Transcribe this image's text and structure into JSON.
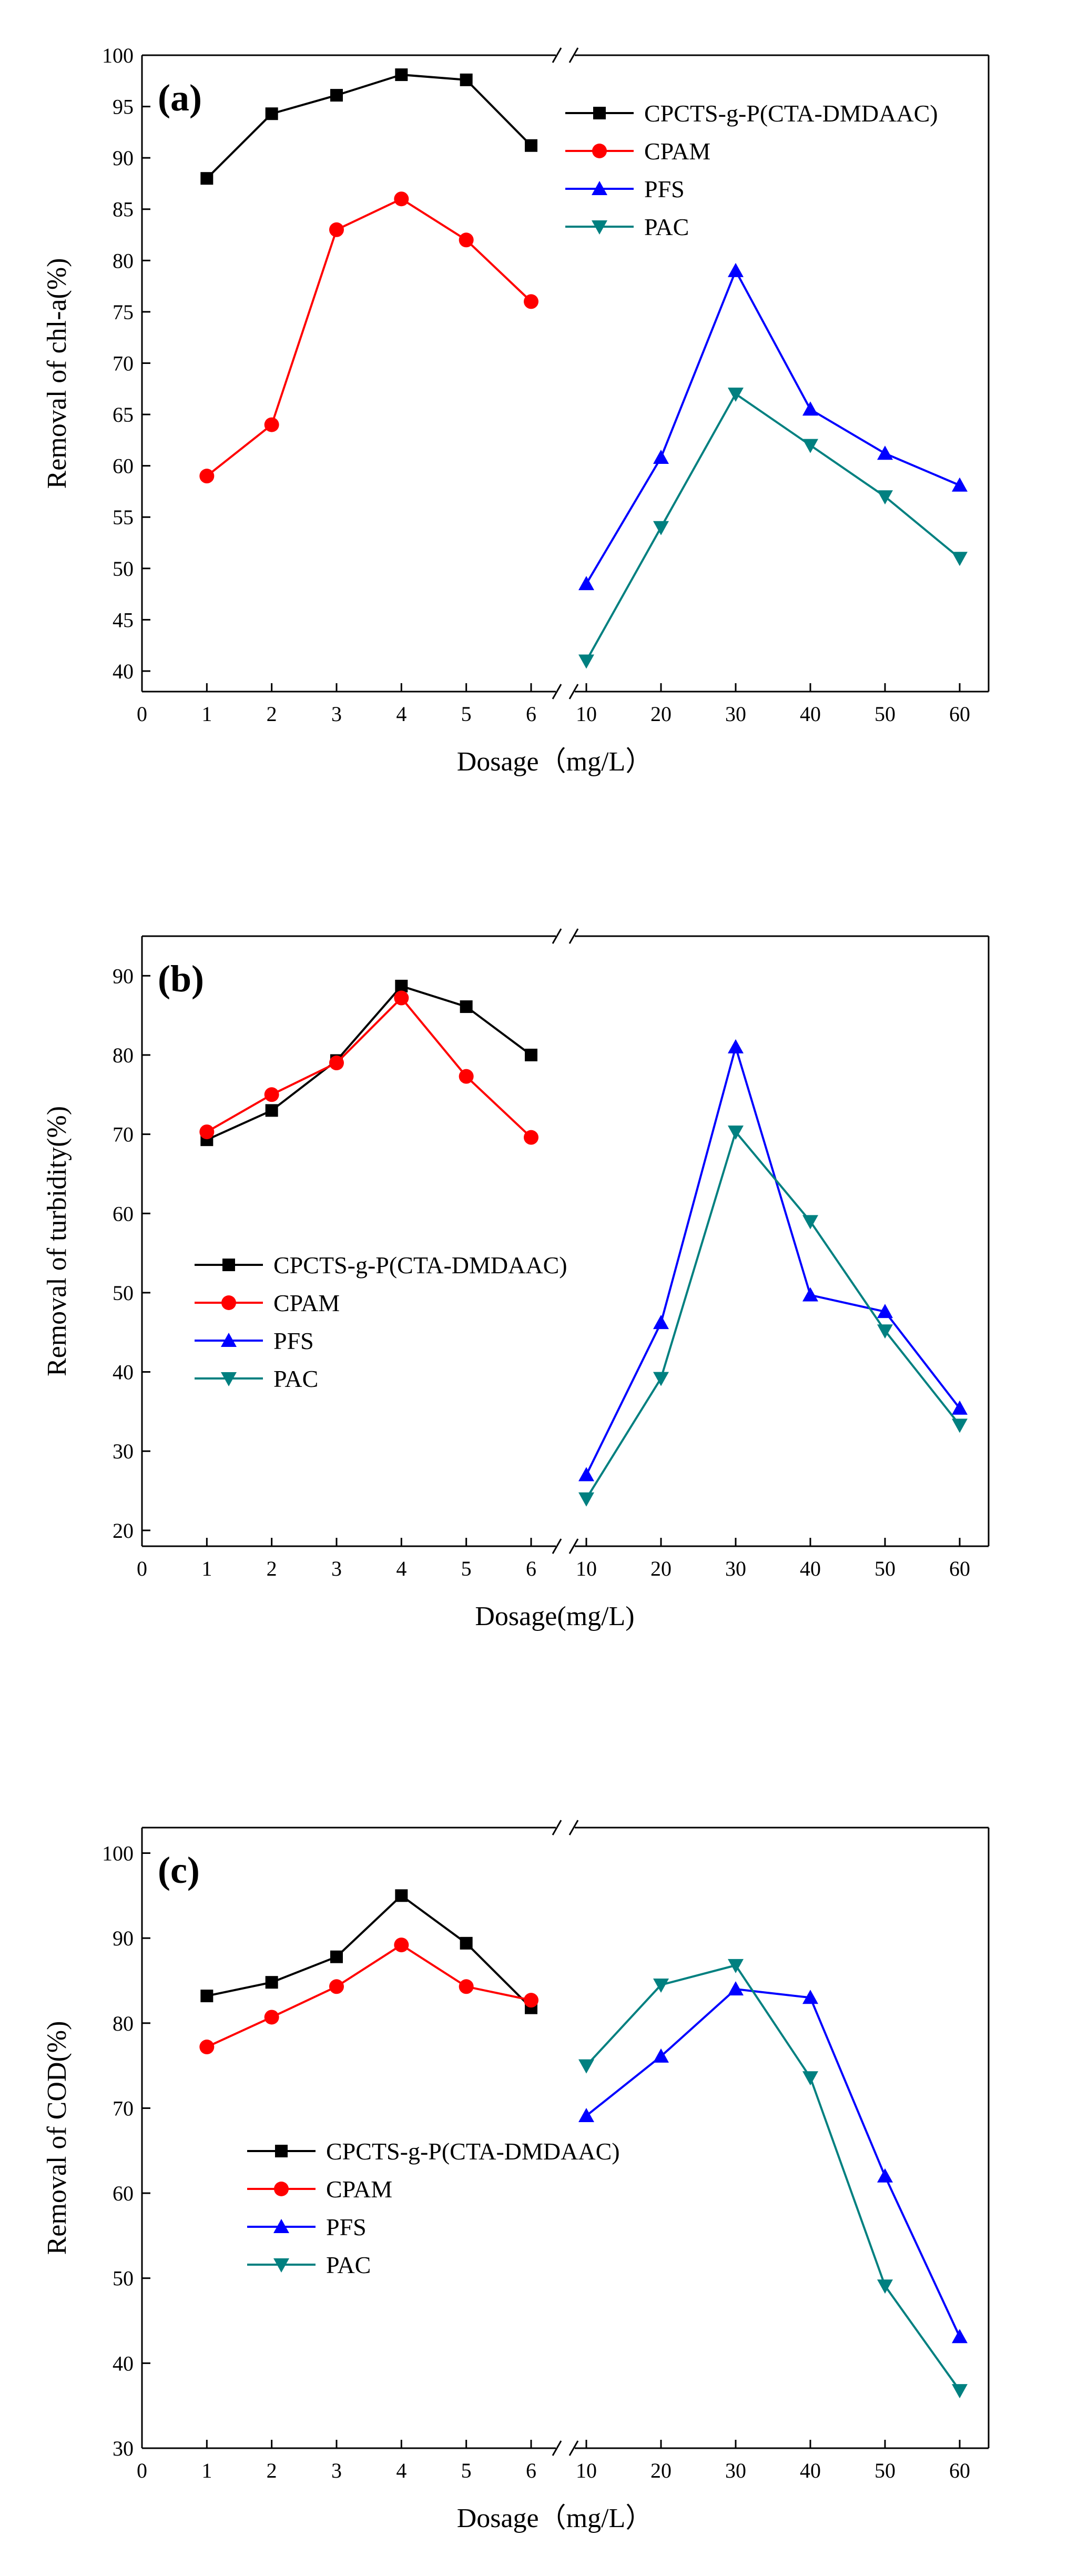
{
  "colors": {
    "black": "#000000",
    "red": "#ff0000",
    "blue": "#0000ff",
    "teal": "#008080"
  },
  "chart_data": [
    {
      "type": "line",
      "panel_label": "(a)",
      "xlabel": "Dosage（mg/L）",
      "ylabel": "Removal of chl-a(%)",
      "ylim": [
        38,
        100
      ],
      "yticks": [
        40,
        45,
        50,
        55,
        60,
        65,
        70,
        75,
        80,
        85,
        90,
        95,
        100
      ],
      "xticks_left": [
        0,
        1,
        2,
        3,
        4,
        5,
        6
      ],
      "xticks_right": [
        10,
        20,
        30,
        40,
        50,
        60
      ],
      "legend_position": "top-right",
      "series": [
        {
          "name": "CPCTS-g-P(CTA-DMDAAC)",
          "color": "#000000",
          "marker": "square",
          "x": [
            1,
            2,
            3,
            4,
            5,
            6
          ],
          "values": [
            88,
            94.3,
            96.1,
            98.1,
            97.6,
            91.2
          ]
        },
        {
          "name": "CPAM",
          "color": "#ff0000",
          "marker": "circle",
          "x": [
            1,
            2,
            3,
            4,
            5,
            6
          ],
          "values": [
            59,
            64,
            83,
            86,
            82,
            76
          ]
        },
        {
          "name": "PFS",
          "color": "#0000ff",
          "marker": "triangle-up",
          "x": [
            10,
            20,
            30,
            40,
            50,
            60
          ],
          "values": [
            48.5,
            60.8,
            79,
            65.5,
            61.2,
            58.1
          ]
        },
        {
          "name": "PAC",
          "color": "#008080",
          "marker": "triangle-down",
          "x": [
            10,
            20,
            30,
            40,
            50,
            60
          ],
          "values": [
            41,
            54,
            67,
            62,
            57,
            51
          ]
        }
      ]
    },
    {
      "type": "line",
      "panel_label": "(b)",
      "xlabel": "Dosage(mg/L)",
      "ylabel": "Removal of turbidity(%)",
      "ylim": [
        18,
        95
      ],
      "yticks": [
        20,
        30,
        40,
        50,
        60,
        70,
        80,
        90
      ],
      "xticks_left": [
        0,
        1,
        2,
        3,
        4,
        5,
        6
      ],
      "xticks_right": [
        10,
        20,
        30,
        40,
        50,
        60
      ],
      "legend_position": "middle-left",
      "series": [
        {
          "name": "CPCTS-g-P(CTA-DMDAAC)",
          "color": "#000000",
          "marker": "square",
          "x": [
            1,
            2,
            3,
            4,
            5,
            6
          ],
          "values": [
            69.3,
            73,
            79.3,
            88.7,
            86.1,
            80
          ]
        },
        {
          "name": "CPAM",
          "color": "#ff0000",
          "marker": "circle",
          "x": [
            1,
            2,
            3,
            4,
            5,
            6
          ],
          "values": [
            70.3,
            75,
            79,
            87.2,
            77.3,
            69.6
          ]
        },
        {
          "name": "PFS",
          "color": "#0000ff",
          "marker": "triangle-up",
          "x": [
            10,
            20,
            30,
            40,
            50,
            60
          ],
          "values": [
            27,
            46.2,
            81,
            49.7,
            47.6,
            35.4
          ]
        },
        {
          "name": "PAC",
          "color": "#008080",
          "marker": "triangle-down",
          "x": [
            10,
            20,
            30,
            40,
            50,
            60
          ],
          "values": [
            24,
            39.2,
            70.3,
            59,
            45.2,
            33.3
          ]
        }
      ]
    },
    {
      "type": "line",
      "panel_label": "(c)",
      "xlabel": "Dosage（mg/L）",
      "ylabel": "Removal of COD(%)",
      "ylim": [
        30,
        103
      ],
      "yticks": [
        30,
        40,
        50,
        60,
        70,
        80,
        90,
        100
      ],
      "xticks_left": [
        0,
        1,
        2,
        3,
        4,
        5,
        6
      ],
      "xticks_right": [
        10,
        20,
        30,
        40,
        50,
        60
      ],
      "legend_position": "lower-left",
      "series": [
        {
          "name": "CPCTS-g-P(CTA-DMDAAC)",
          "color": "#000000",
          "marker": "square",
          "x": [
            1,
            2,
            3,
            4,
            5,
            6
          ],
          "values": [
            83.2,
            84.8,
            87.8,
            95,
            89.4,
            81.8
          ]
        },
        {
          "name": "CPAM",
          "color": "#ff0000",
          "marker": "circle",
          "x": [
            1,
            2,
            3,
            4,
            5,
            6
          ],
          "values": [
            77.2,
            80.7,
            84.3,
            89.2,
            84.3,
            82.7
          ]
        },
        {
          "name": "PFS",
          "color": "#0000ff",
          "marker": "triangle-up",
          "x": [
            10,
            20,
            30,
            40,
            50,
            60
          ],
          "values": [
            69.1,
            76.1,
            84,
            83,
            62,
            43.1
          ]
        },
        {
          "name": "PAC",
          "color": "#008080",
          "marker": "triangle-down",
          "x": [
            10,
            20,
            30,
            40,
            50,
            60
          ],
          "values": [
            75,
            84.5,
            86.8,
            73.6,
            49.1,
            36.8
          ]
        }
      ]
    }
  ]
}
